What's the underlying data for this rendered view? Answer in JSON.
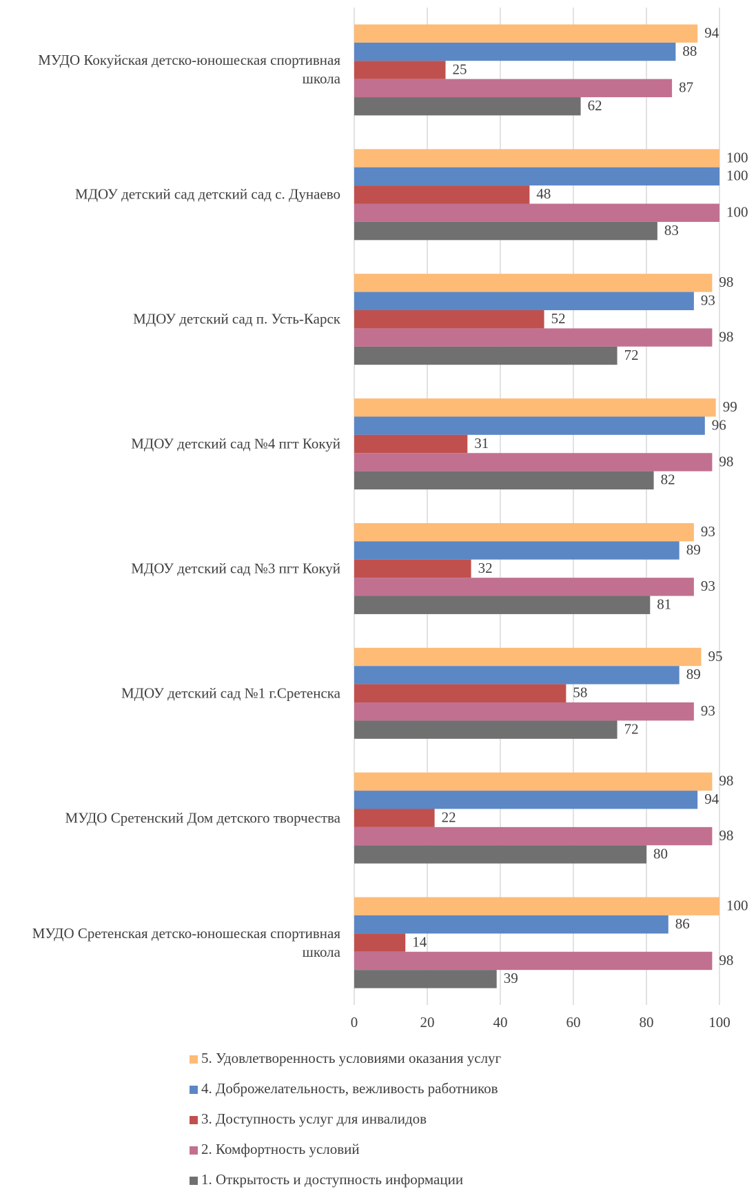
{
  "chart_data": {
    "type": "bar",
    "orientation": "horizontal",
    "categories": [
      "МУДО Кокуйская детско-юношеская спортивная школа",
      "МДОУ  детский сад детский сад с. Дунаево",
      "МДОУ детский сад п. Усть-Карск",
      "МДОУ детский сад №4 пгт  Кокуй",
      "МДОУ детский сад  №3 пгт  Кокуй",
      "МДОУ детский сад №1 г.Сретенска",
      "МУДО Сретенский Дом детского творчества",
      "МУДО Сретенская детско-юношеская спортивная школа"
    ],
    "series": [
      {
        "name": "5. Удовлетворенность условиями оказания услуг",
        "color": "#fdbb76",
        "values": [
          94,
          100,
          98,
          99,
          93,
          95,
          98,
          100
        ]
      },
      {
        "name": "4. Доброжелательность, вежливость работников",
        "color": "#5b87c5",
        "values": [
          88,
          100,
          93,
          96,
          89,
          89,
          94,
          86
        ]
      },
      {
        "name": "3. Доступность услуг для инвалидов",
        "color": "#c0504d",
        "values": [
          25,
          48,
          52,
          31,
          32,
          58,
          22,
          14
        ]
      },
      {
        "name": "2. Комфортность условий",
        "color": "#c27090",
        "values": [
          87,
          100,
          98,
          98,
          93,
          93,
          98,
          98
        ]
      },
      {
        "name": "1. Открытость и доступность информации",
        "color": "#707070",
        "values": [
          62,
          83,
          72,
          82,
          81,
          72,
          80,
          39
        ]
      }
    ],
    "xlim": [
      0,
      100
    ],
    "xticks": [
      0,
      20,
      40,
      60,
      80,
      100
    ],
    "grid": true,
    "legend": "bottom"
  }
}
